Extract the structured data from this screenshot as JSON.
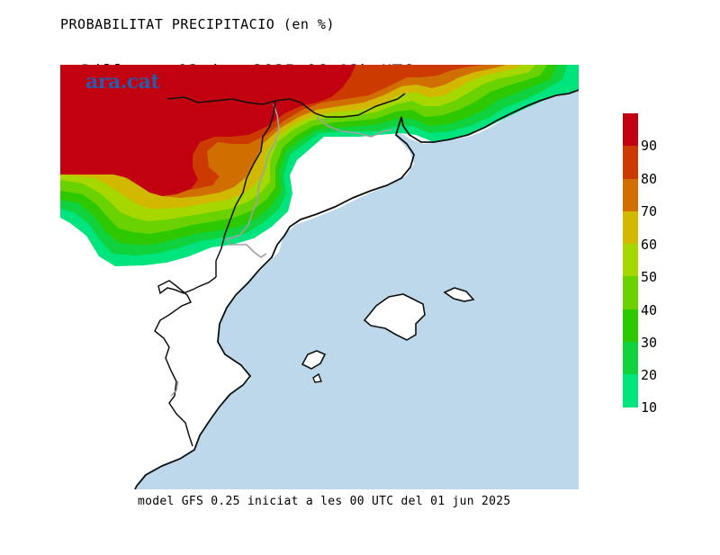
{
  "header": {
    "title": "PROBABILITAT PRECIPITACIO (en %)",
    "day": "Dilluns",
    "date_range": "02.jun.2025 06-12h UTC"
  },
  "logo": {
    "text": "ara.cat"
  },
  "footer": {
    "text": "model GFS 0.25 iniciat a les 00 UTC del 01 jun 2025"
  },
  "legend": {
    "labels": [
      "90",
      "80",
      "70",
      "60",
      "50",
      "40",
      "30",
      "20",
      "10"
    ],
    "colors": [
      "#c10010",
      "#cc3a00",
      "#d06e00",
      "#d2b800",
      "#a6d800",
      "#6ad200",
      "#2ec800",
      "#10d23c",
      "#00e47e"
    ]
  },
  "map": {
    "sea_color": "#bcd8ea",
    "land_color": "#ffffff",
    "coast_color": "#111111",
    "border_color": "#aaaaaa"
  }
}
